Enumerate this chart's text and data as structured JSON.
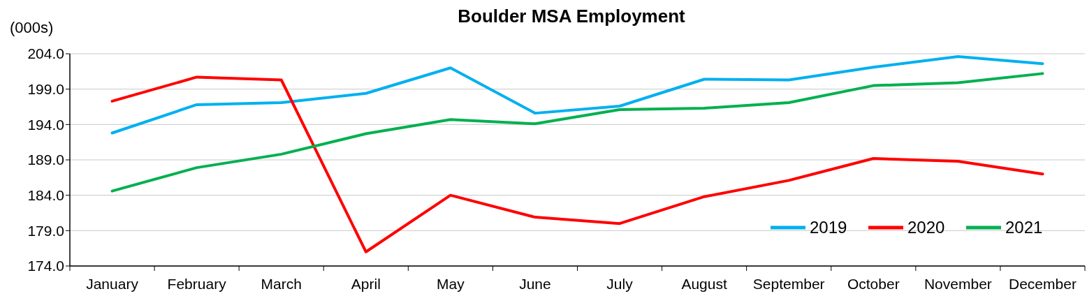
{
  "chart_data": {
    "type": "line",
    "title": "Boulder MSA Employment",
    "ylabel": "(000s)",
    "categories": [
      "January",
      "February",
      "March",
      "April",
      "May",
      "June",
      "July",
      "August",
      "September",
      "October",
      "November",
      "December"
    ],
    "series": [
      {
        "name": "2019",
        "color": "#00b0f0",
        "values": [
          192.8,
          196.8,
          197.1,
          198.4,
          202.0,
          195.6,
          196.6,
          200.4,
          200.3,
          202.1,
          203.6,
          202.6
        ]
      },
      {
        "name": "2020",
        "color": "#ff0000",
        "values": [
          197.3,
          200.7,
          200.3,
          176.0,
          184.0,
          180.9,
          180.0,
          183.8,
          186.1,
          189.2,
          188.8,
          187.0
        ]
      },
      {
        "name": "2021",
        "color": "#00b050",
        "values": [
          184.6,
          187.9,
          189.8,
          192.7,
          194.7,
          194.1,
          196.1,
          196.3,
          197.1,
          199.5,
          199.9,
          201.2
        ]
      }
    ],
    "ylim": [
      174,
      204
    ],
    "yticks": [
      {
        "value": 174,
        "label": "174.0"
      },
      {
        "value": 179,
        "label": "179.0"
      },
      {
        "value": 184,
        "label": "184.0"
      },
      {
        "value": 189,
        "label": "189.0"
      },
      {
        "value": 194,
        "label": "194.0"
      },
      {
        "value": 199,
        "label": "199.0"
      },
      {
        "value": 204,
        "label": "204.0"
      }
    ],
    "grid": "y",
    "legend": "bottom right",
    "marker": "none",
    "line_style": "solid"
  }
}
